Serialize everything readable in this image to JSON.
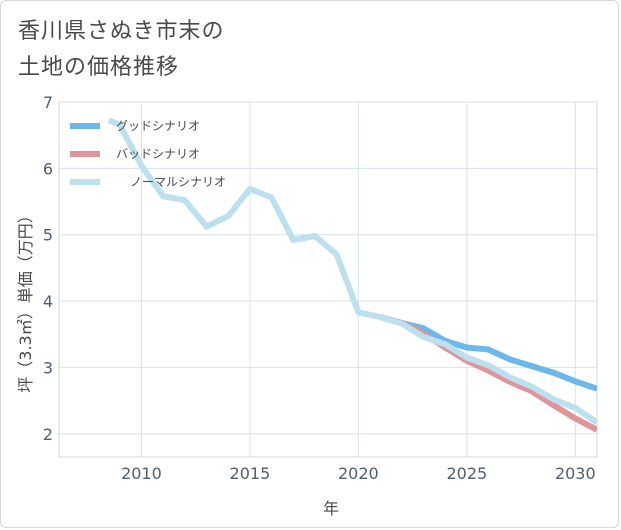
{
  "title_lines": [
    "香川県さぬき市末の",
    "土地の価格推移"
  ],
  "chart_data": {
    "type": "line",
    "title": "香川県さぬき市末の土地の価格推移",
    "xlabel": "年",
    "ylabel": "坪（3.3㎡）単価（万円）",
    "xlim": [
      2006.2,
      2031
    ],
    "ylim": [
      1.65,
      7
    ],
    "x_ticks": [
      2010,
      2015,
      2020,
      2025,
      2030
    ],
    "y_ticks": [
      2,
      3,
      4,
      5,
      6,
      7
    ],
    "legend_position": "top-left",
    "series": [
      {
        "name": "グッドシナリオ",
        "color": "#6cb8ec",
        "x": [
          2021,
          2022,
          2023,
          2024,
          2025,
          2026,
          2027,
          2028,
          2029,
          2030,
          2031
        ],
        "values": [
          3.76,
          3.67,
          3.59,
          3.4,
          3.3,
          3.27,
          3.12,
          3.02,
          2.92,
          2.79,
          2.68
        ]
      },
      {
        "name": "バッドシナリオ",
        "color": "#e0949a",
        "x": [
          2021,
          2022,
          2023,
          2024,
          2025,
          2026,
          2027,
          2028,
          2029,
          2030,
          2031
        ],
        "values": [
          3.76,
          3.67,
          3.51,
          3.3,
          3.1,
          2.95,
          2.78,
          2.64,
          2.43,
          2.23,
          2.06
        ]
      },
      {
        "name": "ノーマルシナリオ",
        "color": "#bde0ee",
        "x": [
          2008.5,
          2009,
          2010,
          2011,
          2012,
          2013,
          2014,
          2015,
          2016,
          2017,
          2018,
          2019,
          2020,
          2021,
          2022,
          2023,
          2024,
          2025,
          2026,
          2027,
          2028,
          2029,
          2030,
          2031
        ],
        "values": [
          6.72,
          6.66,
          6.04,
          5.58,
          5.52,
          5.12,
          5.28,
          5.69,
          5.56,
          4.92,
          4.98,
          4.7,
          3.83,
          3.76,
          3.66,
          3.46,
          3.35,
          3.15,
          3.03,
          2.85,
          2.71,
          2.52,
          2.39,
          2.17
        ]
      }
    ]
  }
}
